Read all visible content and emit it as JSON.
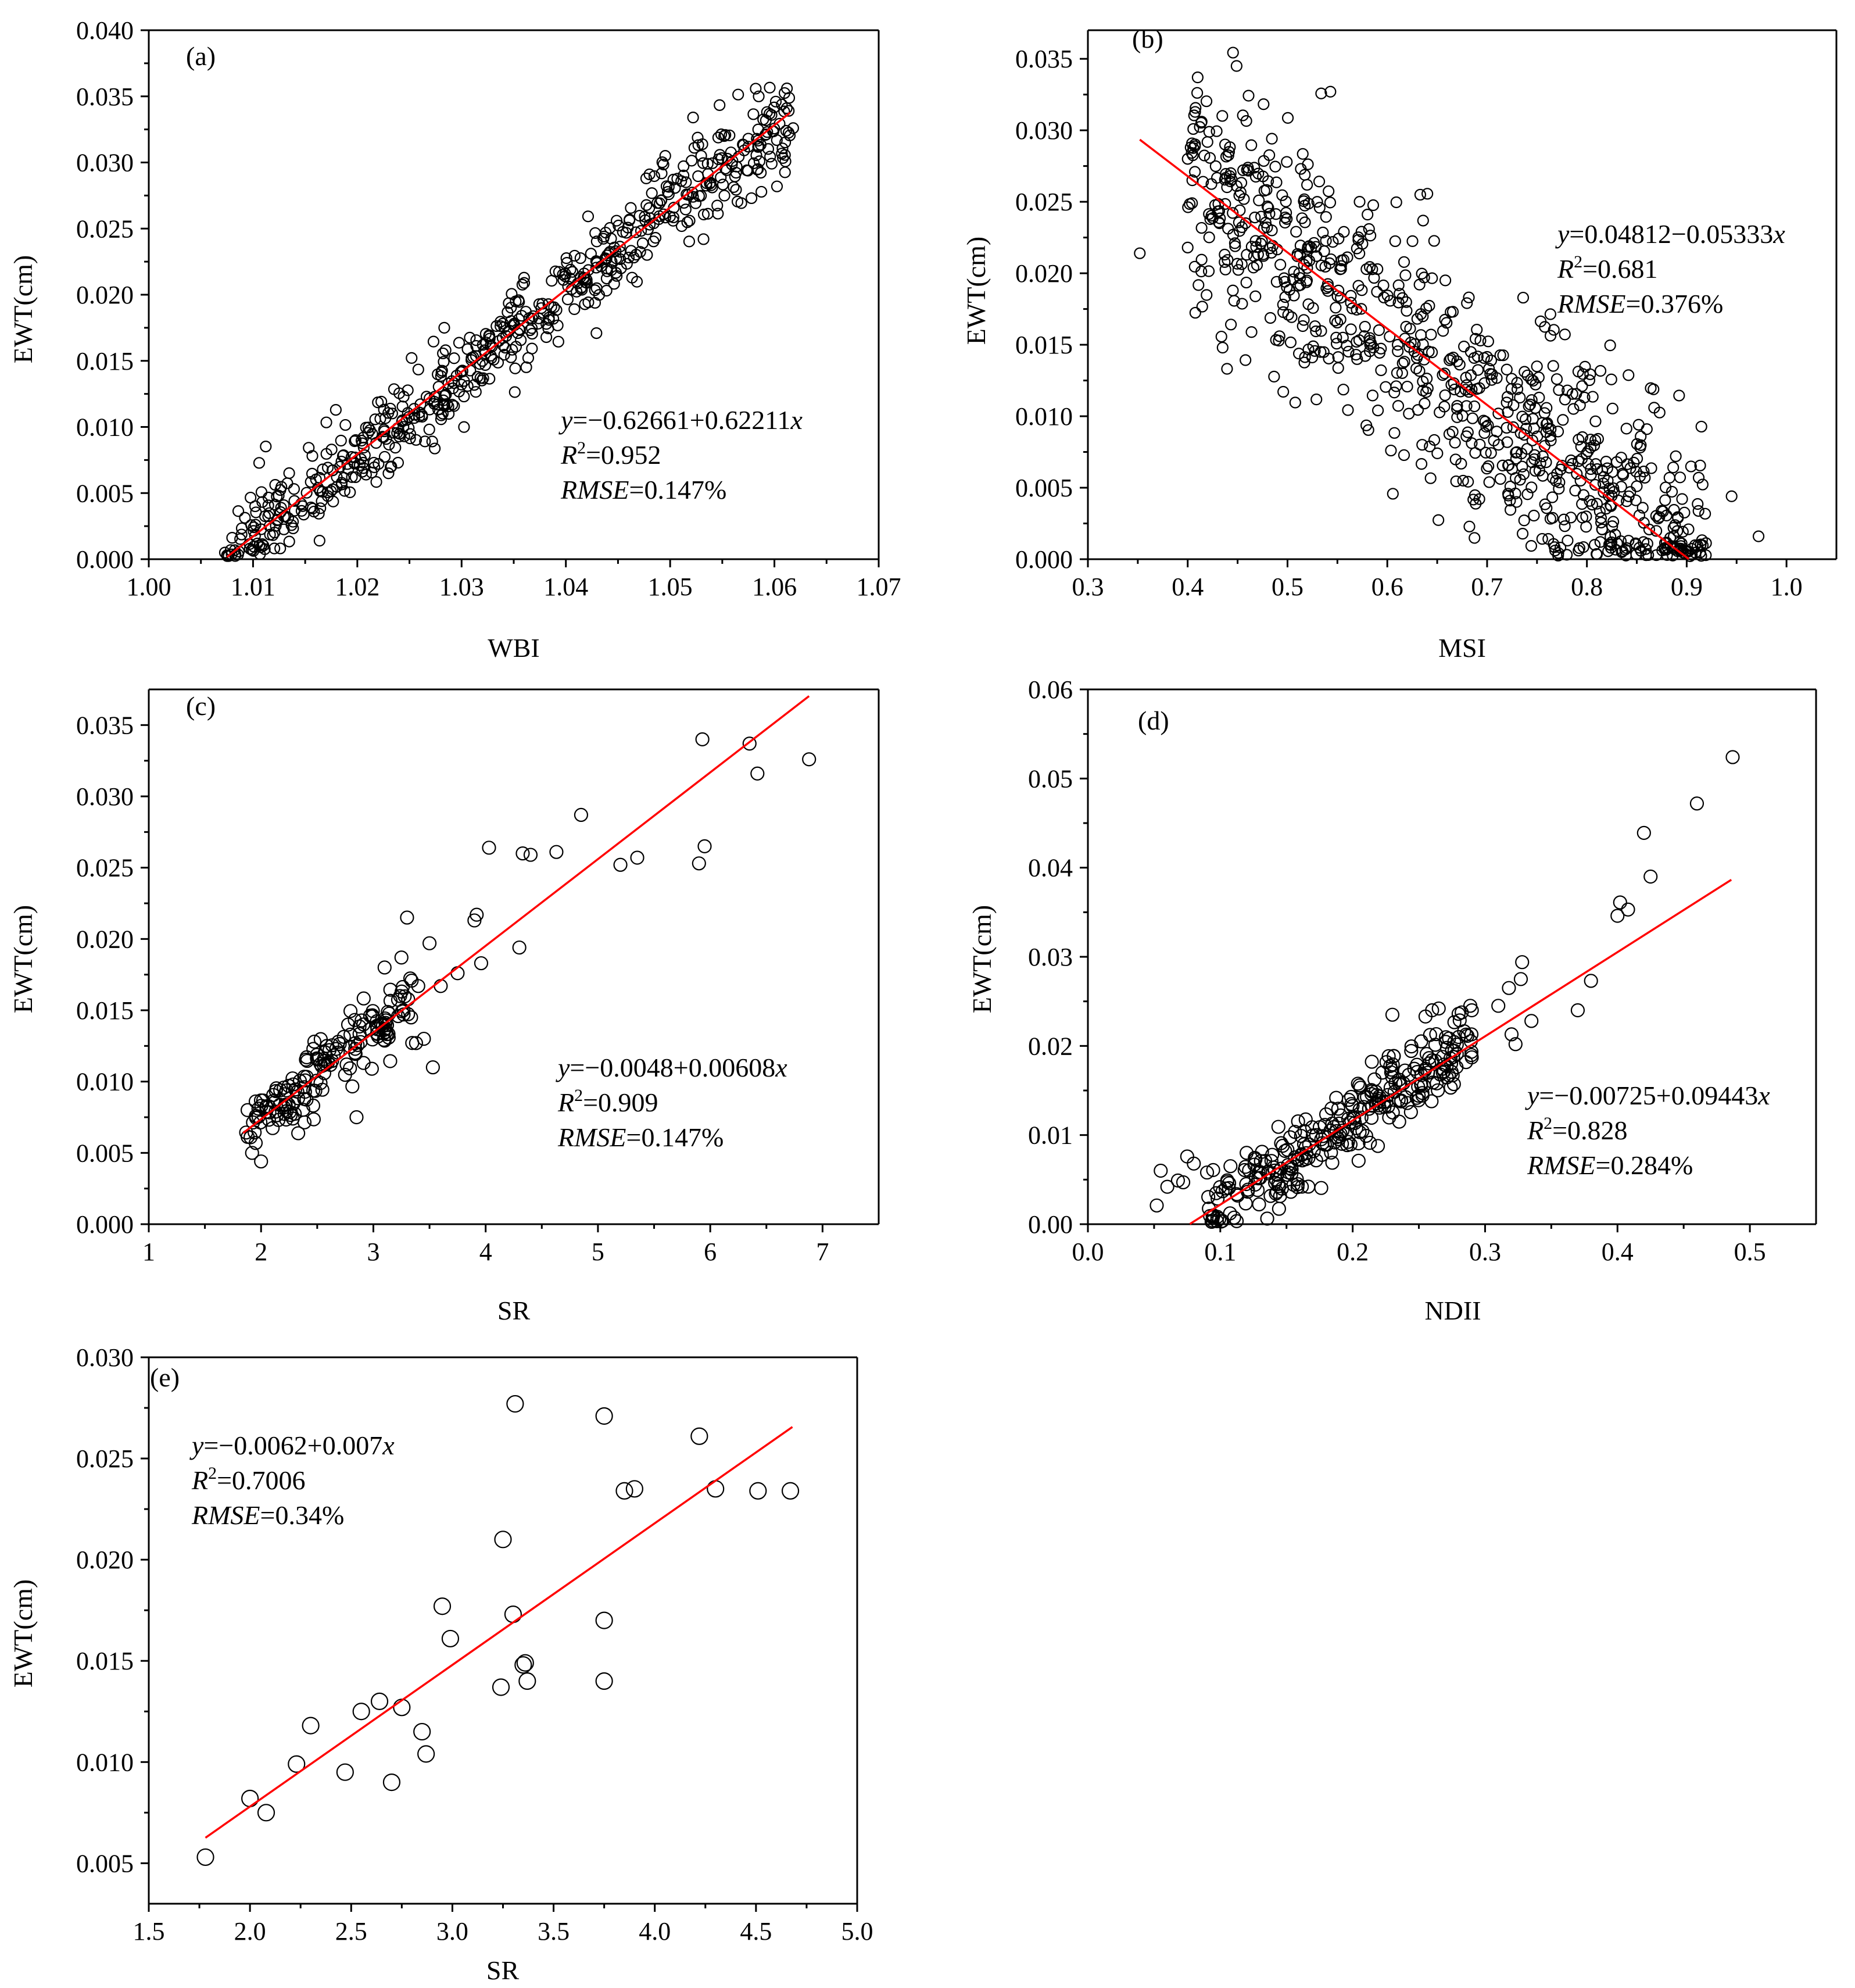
{
  "colors": {
    "axis": "#000000",
    "fit_line": "#ff0000",
    "marker_edge": "#000000",
    "background": "#ffffff"
  },
  "chart_data": [
    {
      "panel": "(a)",
      "type": "scatter",
      "xlabel": "WBI",
      "ylabel": "EWT(cm)",
      "xlim": [
        1.0,
        1.07
      ],
      "ylim": [
        0.0,
        0.04
      ],
      "xticks": [
        "1.00",
        "1.01",
        "1.02",
        "1.03",
        "1.04",
        "1.05",
        "1.06",
        "1.07"
      ],
      "yticks": [
        "0.000",
        "0.005",
        "0.010",
        "0.015",
        "0.020",
        "0.025",
        "0.030",
        "0.035",
        "0.040"
      ],
      "equation": {
        "y_label": "y",
        "rest": "=−0.62661+0.62211",
        "x_label": "x"
      },
      "r2": {
        "r": "R",
        "exp": "2",
        "rest": "=0.952"
      },
      "rmse": {
        "label": "RMSE",
        "rest": "=0.147%"
      },
      "fit": {
        "intercept": -0.62661,
        "slope": 0.62211,
        "x_range": [
          1.0075,
          1.0615
        ]
      },
      "cloud": {
        "count": 620,
        "x_min": 1.0075,
        "x_max": 1.0615,
        "noise": 0.0017,
        "seed": 11
      },
      "points": [
        [
          1.0612,
          0.0356
        ],
        [
          1.0618,
          0.0326
        ],
        [
          1.0522,
          0.0334
        ],
        [
          1.0575,
          0.0318
        ],
        [
          1.0532,
          0.0242
        ],
        [
          1.0578,
          0.0273
        ],
        [
          1.0073,
          0.0005
        ]
      ]
    },
    {
      "panel": "(b)",
      "type": "scatter",
      "xlabel": "MSI",
      "ylabel": "EWT(cm)",
      "xlim": [
        0.3,
        1.05
      ],
      "ylim": [
        0.0,
        0.037
      ],
      "xticks": [
        "0.3",
        "0.4",
        "0.5",
        "0.6",
        "0.7",
        "0.8",
        "0.9",
        "1.0"
      ],
      "yticks": [
        "0.000",
        "0.005",
        "0.010",
        "0.015",
        "0.020",
        "0.025",
        "0.030",
        "0.035"
      ],
      "equation": {
        "y_label": "y",
        "rest": "=0.04812−0.05333",
        "x_label": "x"
      },
      "r2": {
        "r": "R",
        "exp": "2",
        "rest": "=0.681"
      },
      "rmse": {
        "label": "RMSE",
        "rest": "=0.376%"
      },
      "fit": {
        "intercept": 0.04812,
        "slope": -0.05333,
        "x_range": [
          0.352,
          0.902
        ]
      },
      "cloud": {
        "count": 820,
        "x_min": 0.4,
        "x_max": 0.92,
        "noise": 0.0042,
        "seed": 23
      },
      "points": [
        [
          0.352,
          0.0214
        ],
        [
          0.41,
          0.0337
        ],
        [
          0.449,
          0.0345
        ],
        [
          0.543,
          0.0327
        ],
        [
          0.972,
          0.0016
        ],
        [
          0.945,
          0.0044
        ],
        [
          0.912,
          0.0057
        ],
        [
          0.435,
          0.0148
        ],
        [
          0.4,
          0.0218
        ],
        [
          0.4,
          0.028
        ]
      ]
    },
    {
      "panel": "(c)",
      "type": "scatter",
      "xlabel": "SR",
      "ylabel": "EWT(cm)",
      "xlim": [
        1,
        7.5
      ],
      "ylim": [
        0.0,
        0.0375
      ],
      "xticks": [
        "1",
        "2",
        "3",
        "4",
        "5",
        "6",
        "7"
      ],
      "yticks": [
        "0.000",
        "0.005",
        "0.010",
        "0.015",
        "0.020",
        "0.025",
        "0.030",
        "0.035"
      ],
      "equation": {
        "y_label": "y",
        "rest": "=−0.0048+0.00608",
        "x_label": "x"
      },
      "r2": {
        "r": "R",
        "exp": "2",
        "rest": "=0.909"
      },
      "rmse": {
        "label": "RMSE",
        "rest": "=0.147%"
      },
      "fit": {
        "intercept": -0.0048,
        "slope": 0.00608,
        "x_range": [
          1.84,
          6.88
        ]
      },
      "cloud": {
        "count": 170,
        "x_min": 1.85,
        "x_max": 3.35,
        "noise": 0.0012,
        "seed": 37
      },
      "points": [
        [
          1.88,
          0.008
        ],
        [
          1.92,
          0.005
        ],
        [
          2.0,
          0.0044
        ],
        [
          2.85,
          0.0075
        ],
        [
          3.3,
          0.0215
        ],
        [
          3.5,
          0.0197
        ],
        [
          3.53,
          0.011
        ],
        [
          3.92,
          0.0217
        ],
        [
          3.96,
          0.0183
        ],
        [
          4.03,
          0.0264
        ],
        [
          4.3,
          0.0194
        ],
        [
          4.33,
          0.026
        ],
        [
          4.4,
          0.0259
        ],
        [
          4.63,
          0.0261
        ],
        [
          4.85,
          0.0287
        ],
        [
          5.2,
          0.0252
        ],
        [
          5.35,
          0.0257
        ],
        [
          5.9,
          0.0253
        ],
        [
          5.93,
          0.034
        ],
        [
          5.95,
          0.0265
        ],
        [
          6.35,
          0.0337
        ],
        [
          6.42,
          0.0316
        ],
        [
          6.88,
          0.0326
        ],
        [
          3.45,
          0.013
        ],
        [
          3.38,
          0.0127
        ],
        [
          3.6,
          0.0167
        ],
        [
          3.75,
          0.0176
        ],
        [
          3.9,
          0.0213
        ],
        [
          3.4,
          0.0167
        ],
        [
          3.25,
          0.0187
        ],
        [
          3.1,
          0.018
        ]
      ]
    },
    {
      "panel": "(d)",
      "type": "scatter",
      "xlabel": "NDII",
      "ylabel": "EWT(cm)",
      "xlim": [
        0.0,
        0.55
      ],
      "ylim": [
        0.0,
        0.06
      ],
      "xticks": [
        "0.0",
        "0.1",
        "0.2",
        "0.3",
        "0.4",
        "0.5"
      ],
      "yticks": [
        "0.00",
        "0.01",
        "0.02",
        "0.03",
        "0.04",
        "0.05",
        "0.06"
      ],
      "equation": {
        "y_label": "y",
        "rest": "=−0.00725+0.09443",
        "x_label": "x"
      },
      "r2": {
        "r": "R",
        "exp": "2",
        "rest": "=0.828"
      },
      "rmse": {
        "label": "RMSE",
        "rest": "=0.284%"
      },
      "fit": {
        "intercept": -0.00725,
        "slope": 0.09443,
        "x_range": [
          0.077,
          0.486
        ]
      },
      "cloud": {
        "count": 290,
        "x_min": 0.09,
        "x_max": 0.29,
        "noise": 0.0022,
        "seed": 51
      },
      "points": [
        [
          0.052,
          0.0021
        ],
        [
          0.055,
          0.006
        ],
        [
          0.06,
          0.0042
        ],
        [
          0.068,
          0.0049
        ],
        [
          0.072,
          0.0047
        ],
        [
          0.075,
          0.0076
        ],
        [
          0.08,
          0.0068
        ],
        [
          0.09,
          0.0058
        ],
        [
          0.23,
          0.0235
        ],
        [
          0.255,
          0.0233
        ],
        [
          0.26,
          0.024
        ],
        [
          0.265,
          0.0242
        ],
        [
          0.28,
          0.0236
        ],
        [
          0.29,
          0.024
        ],
        [
          0.31,
          0.0245
        ],
        [
          0.318,
          0.0265
        ],
        [
          0.32,
          0.0213
        ],
        [
          0.323,
          0.0202
        ],
        [
          0.327,
          0.0275
        ],
        [
          0.328,
          0.0294
        ],
        [
          0.335,
          0.0228
        ],
        [
          0.37,
          0.024
        ],
        [
          0.38,
          0.0273
        ],
        [
          0.4,
          0.0346
        ],
        [
          0.402,
          0.0361
        ],
        [
          0.408,
          0.0353
        ],
        [
          0.425,
          0.039
        ],
        [
          0.42,
          0.0439
        ],
        [
          0.46,
          0.0472
        ],
        [
          0.487,
          0.0524
        ],
        [
          0.28,
          0.021
        ],
        [
          0.275,
          0.0195
        ]
      ]
    },
    {
      "panel": "(e)",
      "type": "scatter",
      "xlabel": "SR",
      "ylabel": "EWT(cm)",
      "xlim": [
        1.5,
        5.0
      ],
      "ylim": [
        0.003,
        0.03
      ],
      "xticks": [
        "1.5",
        "2.0",
        "2.5",
        "3.0",
        "3.5",
        "4.0",
        "4.5",
        "5.0"
      ],
      "yticks": [
        "0.005",
        "0.010",
        "0.015",
        "0.020",
        "0.025",
        "0.030"
      ],
      "equation": {
        "y_label": "y",
        "rest": "=−0.0062+0.007",
        "x_label": "x"
      },
      "r2": {
        "r": "R",
        "exp": "2",
        "rest": "=0.7006"
      },
      "rmse": {
        "label": "RMSE",
        "rest": "=0.34%"
      },
      "fit": {
        "intercept": -0.0062,
        "slope": 0.007,
        "x_range": [
          1.78,
          4.68
        ]
      },
      "points": [
        [
          1.78,
          0.0053
        ],
        [
          2.0,
          0.0082
        ],
        [
          2.08,
          0.0075
        ],
        [
          2.23,
          0.0099
        ],
        [
          2.3,
          0.0118
        ],
        [
          2.47,
          0.0095
        ],
        [
          2.55,
          0.0125
        ],
        [
          2.64,
          0.013
        ],
        [
          2.7,
          0.009
        ],
        [
          2.75,
          0.0127
        ],
        [
          2.85,
          0.0115
        ],
        [
          2.87,
          0.0104
        ],
        [
          2.95,
          0.0177
        ],
        [
          2.99,
          0.0161
        ],
        [
          3.24,
          0.0137
        ],
        [
          3.25,
          0.021
        ],
        [
          3.3,
          0.0173
        ],
        [
          3.31,
          0.0277
        ],
        [
          3.35,
          0.0148
        ],
        [
          3.36,
          0.0149
        ],
        [
          3.37,
          0.014
        ],
        [
          3.75,
          0.0271
        ],
        [
          3.75,
          0.017
        ],
        [
          3.75,
          0.014
        ],
        [
          3.85,
          0.0234
        ],
        [
          3.9,
          0.0235
        ],
        [
          4.22,
          0.0261
        ],
        [
          4.3,
          0.0235
        ],
        [
          4.51,
          0.0234
        ],
        [
          4.67,
          0.0234
        ]
      ]
    }
  ]
}
